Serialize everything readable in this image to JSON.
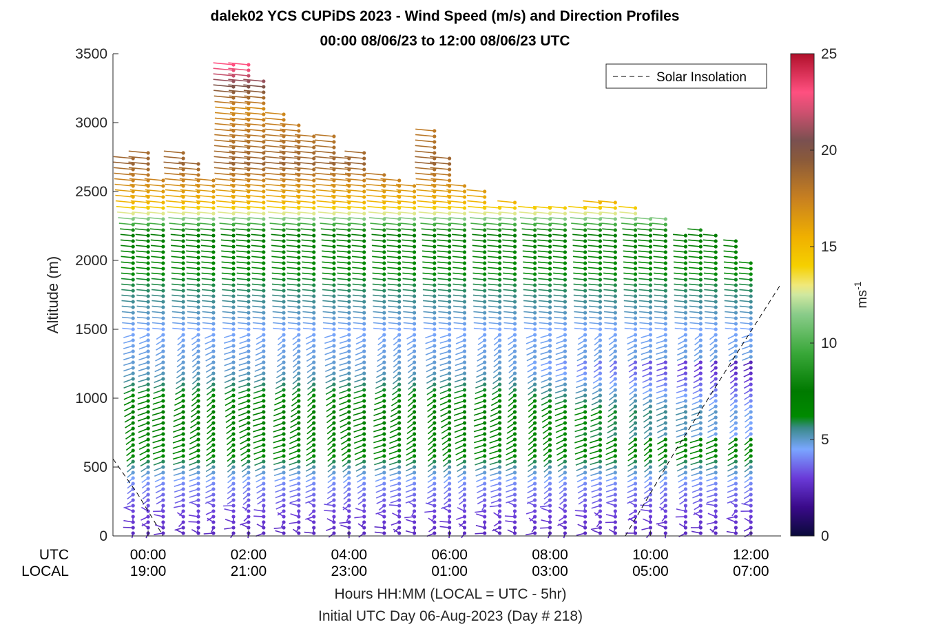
{
  "chart_data": {
    "type": "scatter",
    "title": "dalek02 YCS CUPiDS 2023 - Wind Speed (m/s) and Direction Profiles",
    "subtitle": "00:00 08/06/23 to 12:00 08/06/23  UTC",
    "ylabel": "Altitude (m)",
    "ylim": [
      0,
      3500
    ],
    "yticks": [
      0,
      500,
      1000,
      1500,
      2000,
      2500,
      3000,
      3500
    ],
    "xlim_hours": [
      -0.7,
      12.6
    ],
    "xticks": [
      {
        "hour": 0,
        "utc": "00:00",
        "local": "19:00"
      },
      {
        "hour": 2,
        "utc": "02:00",
        "local": "21:00"
      },
      {
        "hour": 4,
        "utc": "04:00",
        "local": "23:00"
      },
      {
        "hour": 6,
        "utc": "06:00",
        "local": "01:00"
      },
      {
        "hour": 8,
        "utc": "08:00",
        "local": "03:00"
      },
      {
        "hour": 10,
        "utc": "10:00",
        "local": "05:00"
      },
      {
        "hour": 12,
        "utc": "12:00",
        "local": "07:00"
      }
    ],
    "xtick_row_labels": {
      "utc": "UTC",
      "local": "LOCAL"
    },
    "xlabel": "Hours HH:MM  (LOCAL = UTC - 5hr)",
    "xlabel2": "Initial UTC Day 06-Aug-2023 (Day # 218)",
    "legend": {
      "position": "top-right",
      "entries": [
        {
          "name": "Solar Insolation",
          "style": "dashed",
          "color": "#000000"
        }
      ]
    },
    "colorbar": {
      "label": "ms",
      "label_exponent": "-1",
      "range": [
        0,
        25
      ],
      "ticks": [
        0,
        5,
        10,
        15,
        20,
        25
      ],
      "colormap": [
        [
          0,
          "#0a0a3a"
        ],
        [
          1.5,
          "#3a0a8a"
        ],
        [
          3.0,
          "#6a3ad8"
        ],
        [
          4.5,
          "#7aa6ff"
        ],
        [
          5.6,
          "#3a8a8a"
        ],
        [
          6.2,
          "#008a00"
        ],
        [
          7.5,
          "#007a00"
        ],
        [
          9.5,
          "#3aa83a"
        ],
        [
          11.5,
          "#8acc8a"
        ],
        [
          12.5,
          "#cfe8a0"
        ],
        [
          13.0,
          "#f0e87a"
        ],
        [
          14.0,
          "#f5d000"
        ],
        [
          15.5,
          "#f0b000"
        ],
        [
          17.5,
          "#c88020"
        ],
        [
          19.5,
          "#8a5a3a"
        ],
        [
          20.5,
          "#7a5050"
        ],
        [
          22.0,
          "#d05070"
        ],
        [
          23.0,
          "#ff5080"
        ],
        [
          25,
          "#b0102a"
        ]
      ]
    },
    "solar_insolation": [
      {
        "hour": -0.7,
        "alt": 560
      },
      {
        "hour": -0.2,
        "alt": 300
      },
      {
        "hour": 0.3,
        "alt": 0
      },
      {
        "hour": 9.5,
        "alt": 0
      },
      {
        "hour": 10.5,
        "alt": 620
      },
      {
        "hour": 11.5,
        "alt": 1200
      },
      {
        "hour": 12.6,
        "alt": 1830
      }
    ],
    "profile_hours": [
      -0.3,
      0.0,
      0.3,
      0.7,
      1.0,
      1.3,
      1.7,
      2.0,
      2.3,
      2.7,
      3.0,
      3.3,
      3.7,
      4.0,
      4.3,
      4.7,
      5.0,
      5.3,
      5.7,
      6.0,
      6.3,
      6.7,
      7.0,
      7.3,
      7.7,
      8.0,
      8.3,
      8.7,
      9.0,
      9.3,
      9.7,
      10.0,
      10.3,
      10.7,
      11.0,
      11.3,
      11.7,
      12.0
    ],
    "profile_top_alt": [
      2740,
      2780,
      2600,
      2780,
      2700,
      2600,
      3440,
      3430,
      3320,
      3080,
      2980,
      2900,
      2900,
      2760,
      2780,
      2650,
      2600,
      2560,
      2940,
      2740,
      2560,
      2520,
      2400,
      2420,
      2390,
      2380,
      2380,
      2380,
      2420,
      2420,
      2400,
      2320,
      2300,
      2200,
      2250,
      2200,
      2160,
      1990
    ],
    "speed_profile": [
      {
        "alt": 0,
        "speed": 2.5
      },
      {
        "alt": 200,
        "speed": 3.2
      },
      {
        "alt": 400,
        "speed": 4.2
      },
      {
        "alt": 600,
        "speed": 6.5
      },
      {
        "alt": 900,
        "speed": 7.2
      },
      {
        "alt": 1200,
        "speed": 5.0
      },
      {
        "alt": 1500,
        "speed": 4.5
      },
      {
        "alt": 1700,
        "speed": 5.5
      },
      {
        "alt": 2000,
        "speed": 6.5
      },
      {
        "alt": 2200,
        "speed": 7.5
      },
      {
        "alt": 2400,
        "speed": 15
      },
      {
        "alt": 2700,
        "speed": 19
      },
      {
        "alt": 3100,
        "speed": 17
      },
      {
        "alt": 3400,
        "speed": 23
      }
    ]
  }
}
